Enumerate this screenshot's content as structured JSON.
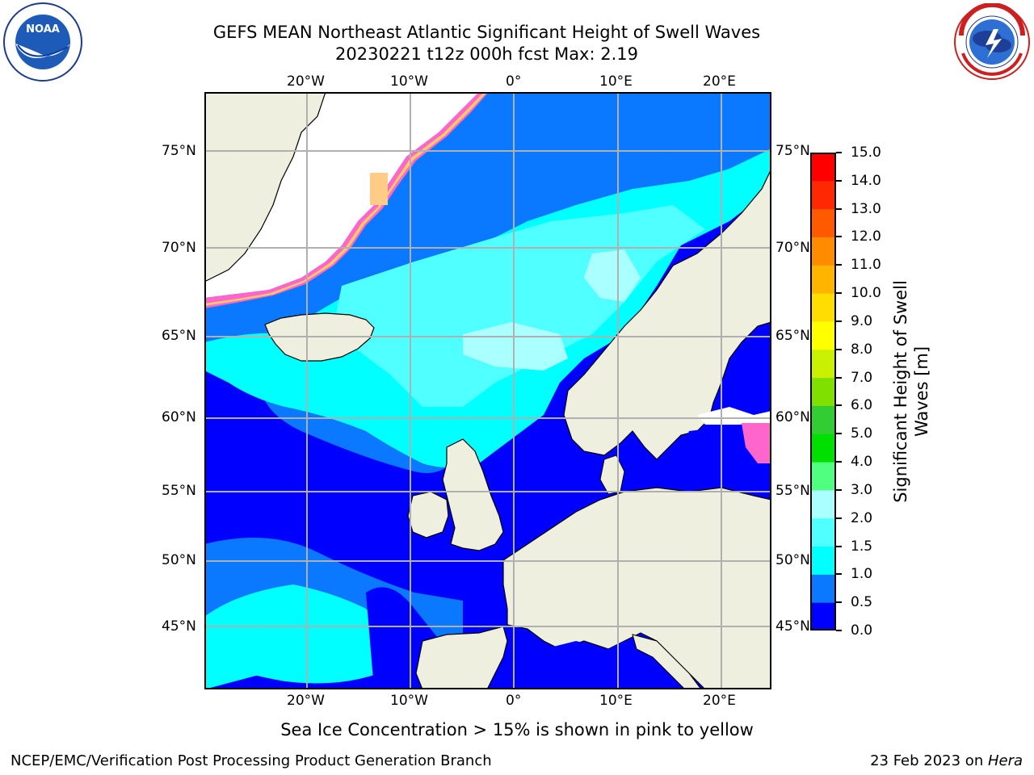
{
  "header": {
    "title_line1": "GEFS MEAN Northeast Atlantic Significant Height of Swell Waves",
    "title_line2": "20230221 t12z 000h fcst   Max: 2.19"
  },
  "logos": {
    "left": {
      "name": "noaa-logo",
      "text": "NOAA",
      "ring_text": "NATIONAL OCEANIC AND ATMOSPHERIC ADMINISTRATION · U.S. DEPARTMENT OF COMMERCE"
    },
    "right": {
      "name": "nws-logo",
      "ring_text": "NATIONAL WEATHER SERVICE"
    }
  },
  "map": {
    "lon_labels": [
      "20°W",
      "10°W",
      "0°",
      "10°E",
      "20°E"
    ],
    "lat_labels": [
      "75°N",
      "70°N",
      "65°N",
      "60°N",
      "55°N",
      "50°N",
      "45°N"
    ]
  },
  "colorbar": {
    "label_line1": "Significant Height of Swell",
    "label_line2": "Waves [m]",
    "ticks": [
      "0.0",
      "0.5",
      "1.0",
      "1.5",
      "2.0",
      "3.0",
      "4.0",
      "5.0",
      "6.0",
      "7.0",
      "8.0",
      "9.0",
      "10.0",
      "11.0",
      "12.0",
      "13.0",
      "14.0",
      "15.0"
    ],
    "colors": [
      "#0000ff",
      "#0a78ff",
      "#00ffff",
      "#50ffff",
      "#aaffff",
      "#50ff80",
      "#00e000",
      "#32cd32",
      "#80e000",
      "#c8f000",
      "#ffff00",
      "#ffdd00",
      "#ffb400",
      "#ff8c00",
      "#ff5a00",
      "#ff2800",
      "#ff0000"
    ]
  },
  "legend_note": "Sea Ice Concentration > 15% is shown in pink to yellow",
  "footer": {
    "left": "NCEP/EMC/Verification Post Processing Product Generation Branch",
    "right_prefix": "23 Feb 2023 on ",
    "right_host": "Hera"
  }
}
